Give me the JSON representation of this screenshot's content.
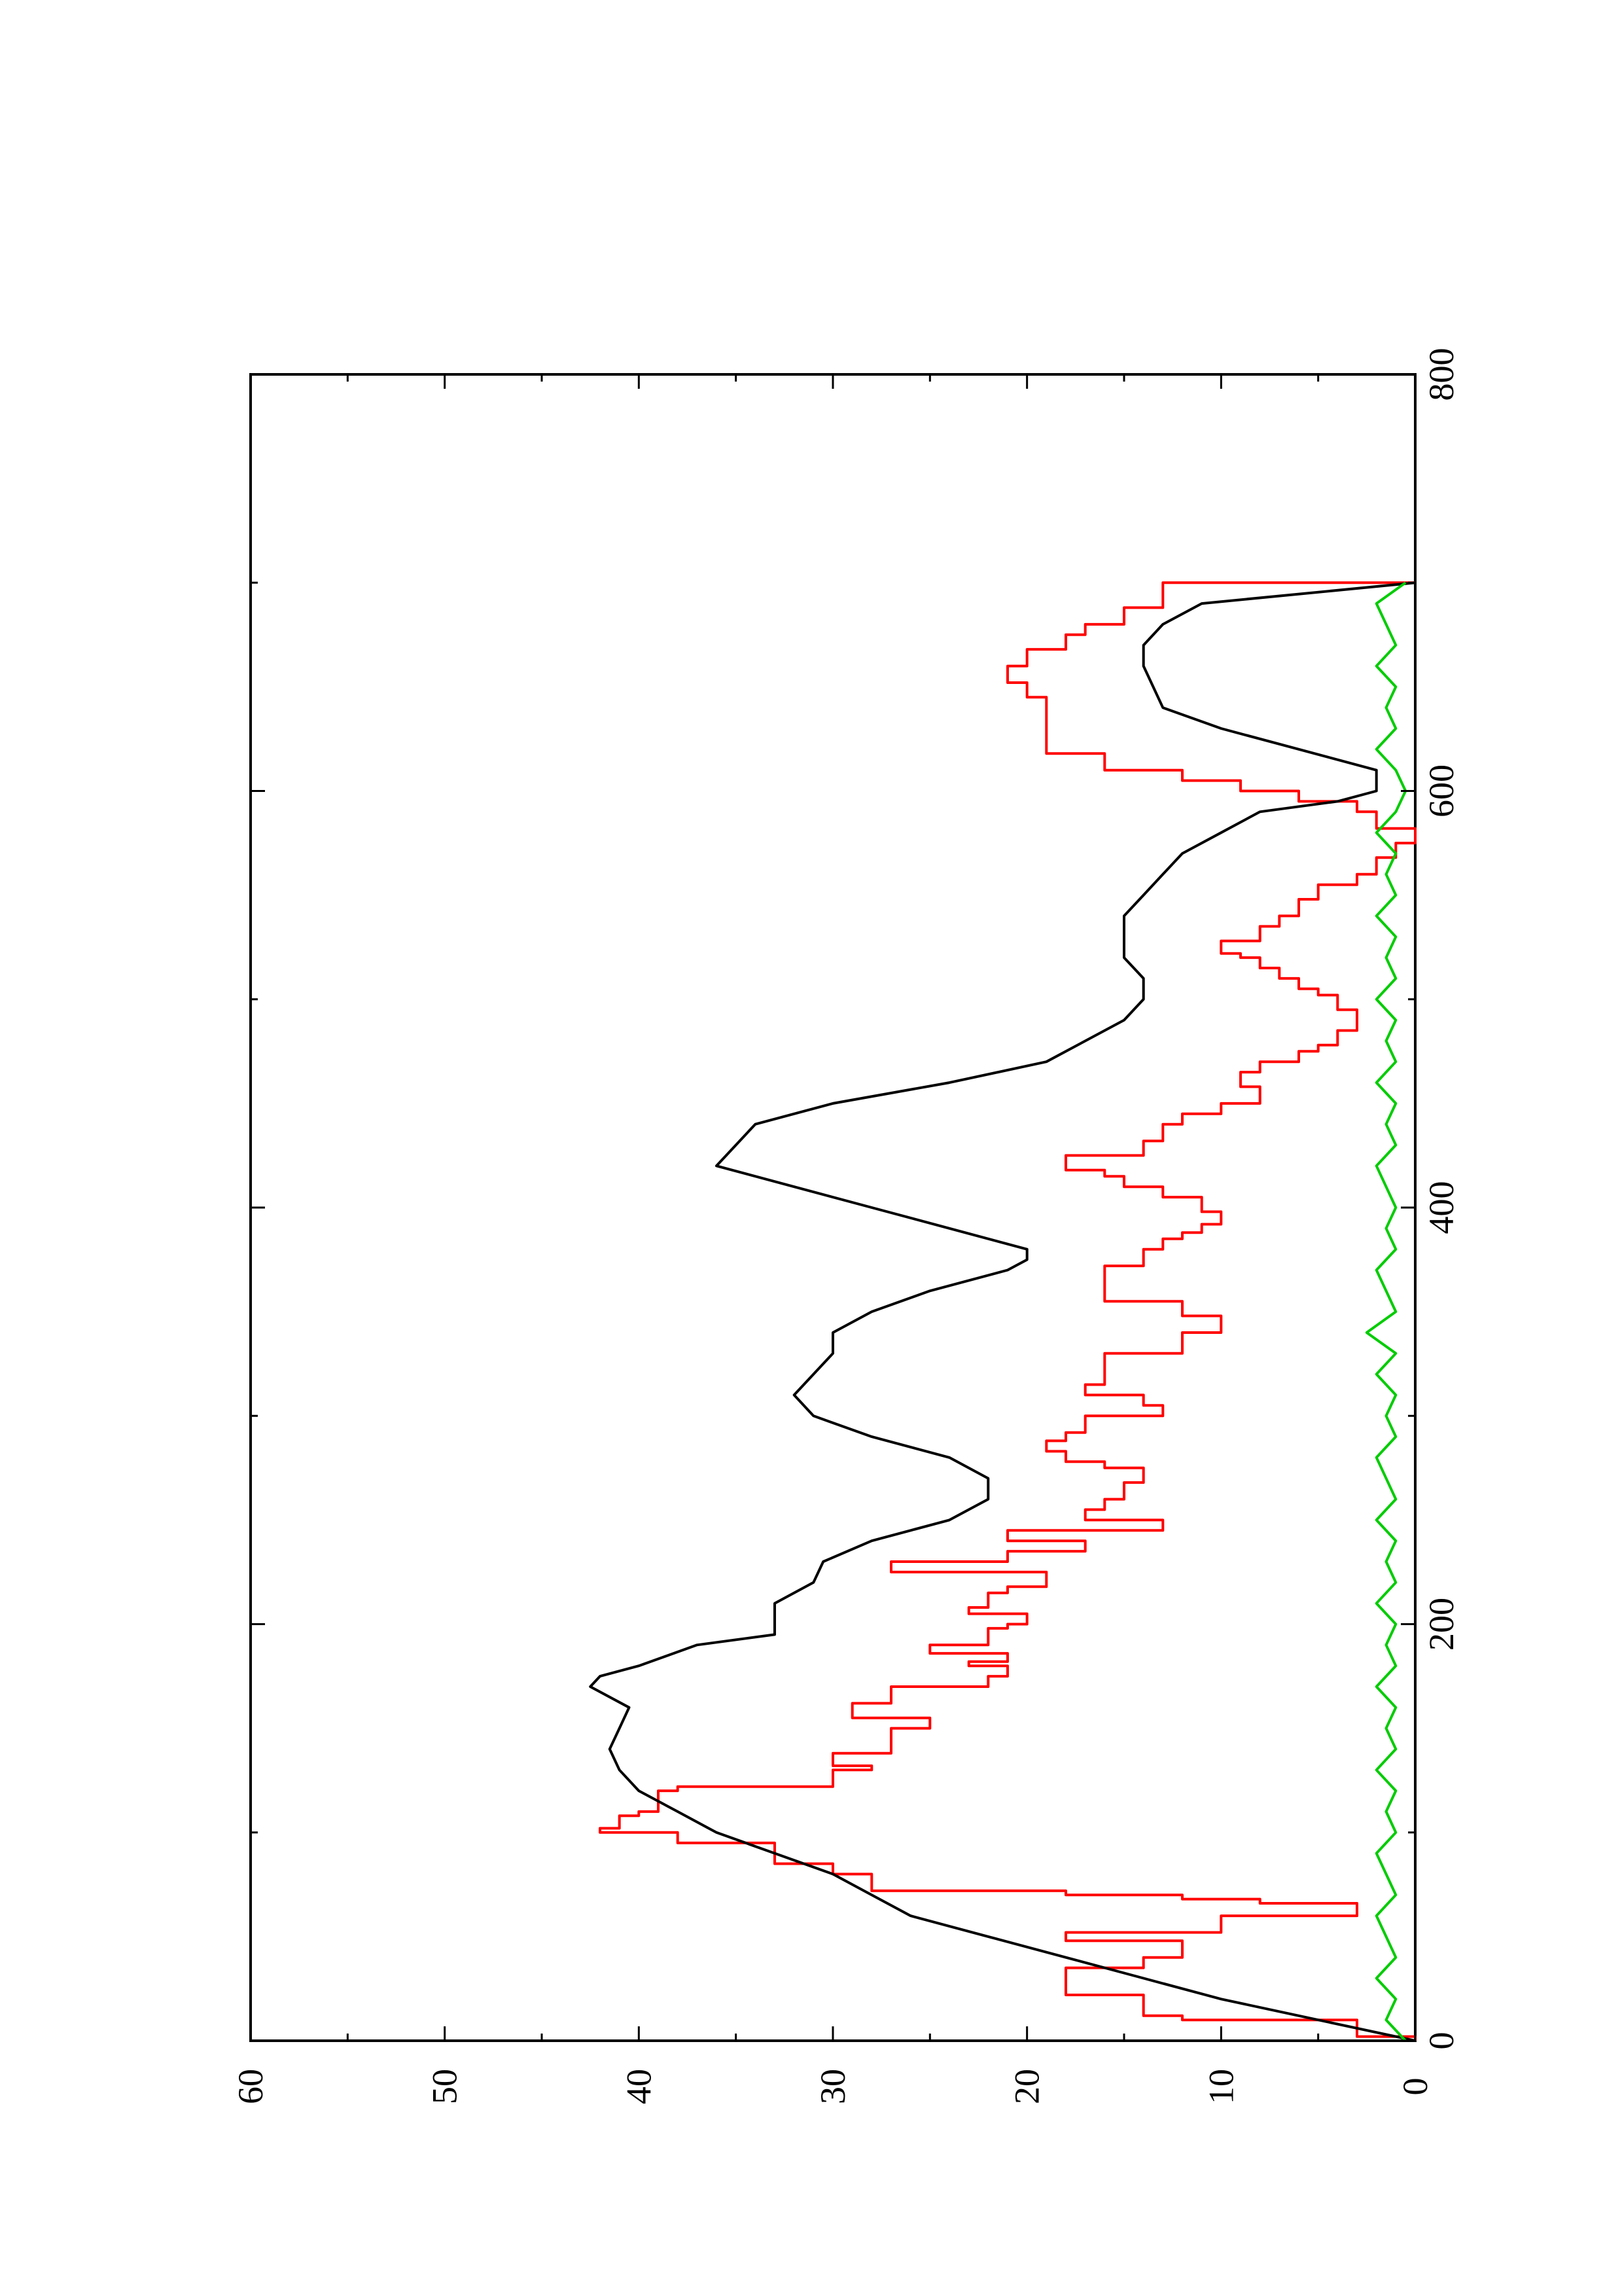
{
  "chart_data": {
    "type": "line",
    "orientation": "rotated-90-ccw",
    "title": "",
    "xlabel": "",
    "ylabel": "",
    "xlim": [
      0,
      800
    ],
    "ylim": [
      0,
      60
    ],
    "xticks": [
      0,
      200,
      400,
      600,
      800
    ],
    "yticks": [
      0,
      10,
      20,
      30,
      40,
      50,
      60
    ],
    "grid": false,
    "legend": "none",
    "series": [
      {
        "color": "#ff0000",
        "style": "step",
        "x": [
          0,
          2,
          3,
          10,
          12,
          22,
          28,
          35,
          40,
          48,
          50,
          52,
          60,
          66,
          68,
          70,
          72,
          80,
          85,
          95,
          100,
          102,
          108,
          110,
          120,
          122,
          130,
          132,
          138,
          150,
          155,
          162,
          170,
          175,
          180,
          182,
          186,
          190,
          198,
          200,
          205,
          208,
          215,
          218,
          225,
          230,
          235,
          240,
          245,
          250,
          255,
          260,
          268,
          275,
          278,
          283,
          288,
          292,
          300,
          305,
          310,
          315,
          322,
          330,
          340,
          348,
          355,
          360,
          372,
          380,
          385,
          388,
          392,
          398,
          405,
          410,
          415,
          418,
          425,
          432,
          440,
          445,
          450,
          458,
          465,
          470,
          475,
          478,
          485,
          490,
          495,
          502,
          505,
          510,
          515,
          520,
          522,
          528,
          535,
          540,
          548,
          555,
          560,
          565,
          568,
          575,
          578,
          582,
          590,
          595,
          600,
          605,
          610,
          618,
          625,
          635,
          645,
          652,
          655,
          660,
          668,
          675,
          680,
          688,
          700
        ],
        "y": [
          0,
          3,
          3,
          12,
          14,
          18,
          18,
          14,
          12,
          18,
          18,
          10,
          3,
          8,
          12,
          18,
          28,
          30,
          33,
          38,
          42,
          41,
          40,
          39,
          38,
          30,
          28,
          30,
          27,
          25,
          29,
          27,
          22,
          21,
          23,
          21,
          25,
          22,
          21,
          20,
          23,
          22,
          21,
          19,
          27,
          21,
          17,
          21,
          13,
          17,
          16,
          15,
          14,
          16,
          18,
          19,
          18,
          17,
          13,
          14,
          17,
          16,
          16,
          12,
          10,
          12,
          16,
          16,
          14,
          13,
          12,
          11,
          10,
          11,
          13,
          15,
          16,
          18,
          14,
          13,
          12,
          10,
          8,
          9,
          8,
          6,
          5,
          4,
          3,
          3,
          4,
          5,
          6,
          7,
          8,
          9,
          10,
          8,
          7,
          6,
          5,
          3,
          2,
          2,
          1,
          0,
          0,
          2,
          3,
          6,
          9,
          12,
          16,
          19,
          19,
          19,
          20,
          21,
          21,
          20,
          18,
          17,
          15,
          13,
          0
        ],
        "note_y_direction": "values read as height above the 0 baseline"
      },
      {
        "color": "#000000",
        "style": "line",
        "x": [
          0,
          10,
          20,
          30,
          40,
          50,
          60,
          70,
          80,
          90,
          100,
          110,
          120,
          130,
          140,
          150,
          160,
          170,
          175,
          180,
          190,
          195,
          200,
          210,
          220,
          230,
          240,
          245,
          250,
          260,
          270,
          280,
          290,
          300,
          310,
          320,
          330,
          340,
          350,
          360,
          370,
          375,
          380,
          390,
          400,
          410,
          420,
          430,
          440,
          450,
          460,
          470,
          480,
          490,
          500,
          510,
          520,
          530,
          540,
          550,
          560,
          570,
          580,
          590,
          595,
          600,
          610,
          620,
          630,
          640,
          650,
          660,
          670,
          680,
          690,
          700
        ],
        "y": [
          0,
          5,
          10,
          14,
          18,
          22,
          26,
          28,
          30,
          33,
          36,
          38,
          40,
          41,
          41.5,
          41,
          40.5,
          42.5,
          42,
          40,
          37,
          33,
          33,
          33,
          31,
          30.5,
          28,
          26,
          24,
          22,
          22,
          24,
          28,
          31,
          32,
          31,
          30,
          30,
          28,
          25,
          21,
          20,
          20,
          24,
          28,
          32,
          36,
          35,
          34,
          30,
          24,
          19,
          17,
          15,
          14,
          14,
          15,
          15,
          15,
          14,
          13,
          12,
          10,
          8,
          4,
          2,
          2,
          6,
          10,
          13,
          13.5,
          14,
          14,
          13,
          11,
          0
        ]
      },
      {
        "color": "#00cc00",
        "style": "line",
        "x": [
          0,
          10,
          20,
          30,
          40,
          50,
          60,
          70,
          80,
          90,
          100,
          110,
          120,
          130,
          140,
          150,
          160,
          170,
          180,
          190,
          200,
          210,
          220,
          230,
          240,
          250,
          260,
          270,
          280,
          290,
          300,
          310,
          320,
          330,
          340,
          350,
          360,
          370,
          380,
          390,
          400,
          410,
          420,
          430,
          440,
          450,
          460,
          470,
          480,
          490,
          500,
          510,
          520,
          530,
          540,
          550,
          560,
          570,
          580,
          590,
          600,
          610,
          620,
          630,
          640,
          650,
          660,
          670,
          680,
          690,
          700
        ],
        "y": [
          0.5,
          1.5,
          1,
          2,
          1,
          1.5,
          2,
          1,
          1.5,
          2,
          1,
          1.5,
          1,
          2,
          1,
          1.5,
          1,
          2,
          1,
          1.5,
          1,
          2,
          1,
          1.5,
          1,
          2,
          1,
          1.5,
          2,
          1,
          1.5,
          1,
          2,
          1,
          2.5,
          1,
          1.5,
          2,
          1,
          1.5,
          1,
          1.5,
          2,
          1,
          1.5,
          1,
          2,
          1,
          1.5,
          1,
          2,
          1,
          1.5,
          1,
          2,
          1,
          1.5,
          1,
          2,
          1,
          0.5,
          1,
          2,
          1,
          1.5,
          1,
          2,
          1,
          1.5,
          2,
          0.5
        ]
      }
    ]
  }
}
